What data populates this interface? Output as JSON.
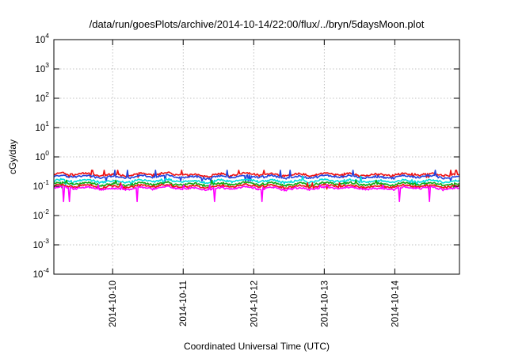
{
  "chart_data": {
    "type": "line",
    "title": "/data/run/goesPlots/archive/2014-10-14/22:00/flux/../bryn/5daysMoon.plot",
    "xlabel": "Coordinated Universal Time (UTC)",
    "ylabel": "cGy/day",
    "yscale": "log",
    "ylim": [
      0.0001,
      10000
    ],
    "yticks": [
      {
        "base": "10",
        "exp": "-4"
      },
      {
        "base": "10",
        "exp": "-3"
      },
      {
        "base": "10",
        "exp": "-2"
      },
      {
        "base": "10",
        "exp": "-1"
      },
      {
        "base": "10",
        "exp": "0"
      },
      {
        "base": "10",
        "exp": "1"
      },
      {
        "base": "10",
        "exp": "2"
      },
      {
        "base": "10",
        "exp": "3"
      },
      {
        "base": "10",
        "exp": "4"
      }
    ],
    "xlim": [
      "2014-10-09T04:00",
      "2014-10-14T22:00"
    ],
    "xticks": [
      "2014-10-10",
      "2014-10-11",
      "2014-10-12",
      "2014-10-13",
      "2014-10-14"
    ],
    "grid": true,
    "series": [
      {
        "color": "#ee1111",
        "typical": 0.25,
        "min": 0.2,
        "max": 0.35
      },
      {
        "color": "#2244dd",
        "typical": 0.21,
        "min": 0.15,
        "max": 0.35
      },
      {
        "color": "#00dddd",
        "typical": 0.15,
        "min": 0.11,
        "max": 0.22
      },
      {
        "color": "#11aa11",
        "typical": 0.12,
        "min": 0.09,
        "max": 0.16
      },
      {
        "color": "#ee1111",
        "typical": 0.1,
        "min": 0.08,
        "max": 0.13
      },
      {
        "color": "#ff00ff",
        "typical": 0.085,
        "min": 0.03,
        "max": 0.11
      }
    ]
  }
}
